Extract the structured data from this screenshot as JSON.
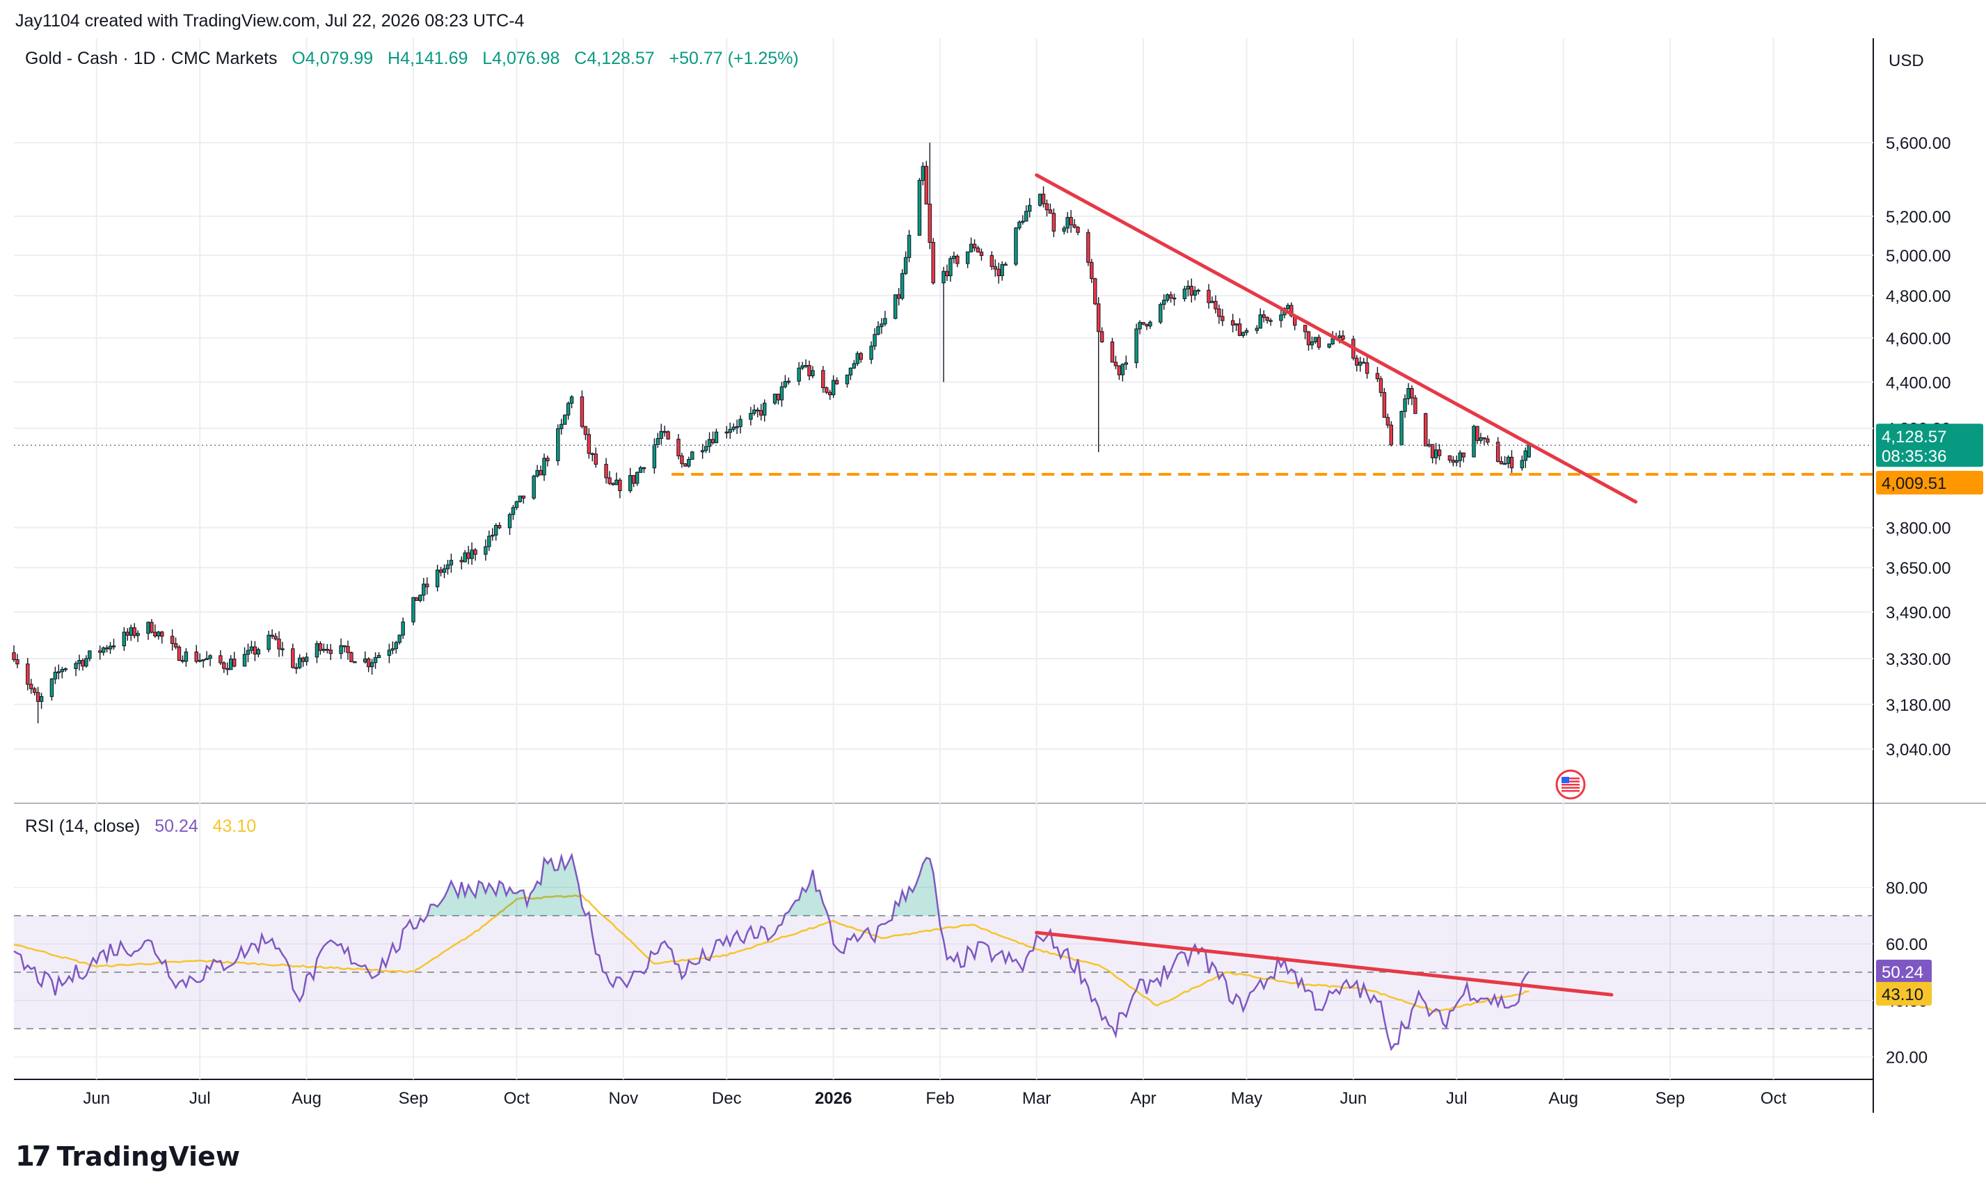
{
  "header": {
    "credit": "Jay1104 created with TradingView.com, Jul 22, 2026 08:23 UTC-4",
    "symbol": "Gold - Cash · 1D · CMC Markets",
    "open": "O4,079.99",
    "high": "H4,141.69",
    "low": "L4,076.98",
    "close": "C4,128.57",
    "change": "+50.77 (+1.25%)"
  },
  "currency": "USD",
  "price_badge": {
    "value": "4,128.57",
    "countdown": "08:35:36",
    "color": "#089981"
  },
  "level_badge": {
    "value": "4,009.51",
    "color": "#ff9800"
  },
  "rsi_legend": {
    "label": "RSI (14, close)",
    "rsi": "50.24",
    "ma": "43.10"
  },
  "rsi_badges": {
    "rsi": "50.24",
    "ma": "43.10",
    "rsi_color": "#7e57c2",
    "ma_color": "#f7c42a"
  },
  "logo": {
    "mark": "17",
    "text": "TradingView"
  },
  "icons": {
    "event_flag": "us-flag-icon"
  },
  "colors": {
    "up": "#089981",
    "down": "#f23645",
    "trendline": "#e63946",
    "support": "#ff9800",
    "rsi": "#7e57c2",
    "rsi_ma": "#f7c42a",
    "rsi_band": "#7e57c2"
  },
  "chart_data": [
    {
      "type": "candlestick",
      "scale": "log",
      "ylim": [
        2950,
        5800
      ],
      "yticks": [
        {
          "value": 5600,
          "label": "5,600.00"
        },
        {
          "value": 5200,
          "label": "5,200.00"
        },
        {
          "value": 5000,
          "label": "5,000.00"
        },
        {
          "value": 4800,
          "label": "4,800.00"
        },
        {
          "value": 4600,
          "label": "4,600.00"
        },
        {
          "value": 4400,
          "label": "4,400.00"
        },
        {
          "value": 4200,
          "label": "4,200.00"
        },
        {
          "value": 3800,
          "label": "3,800.00"
        },
        {
          "value": 3650,
          "label": "3,650.00"
        },
        {
          "value": 3490,
          "label": "3,490.00"
        },
        {
          "value": 3330,
          "label": "3,330.00"
        },
        {
          "value": 3180,
          "label": "3,180.00"
        },
        {
          "value": 3040,
          "label": "3,040.00"
        }
      ],
      "xticks": [
        {
          "date": "2025-06-01",
          "label": "Jun",
          "bold": false
        },
        {
          "date": "2025-07-01",
          "label": "Jul",
          "bold": false
        },
        {
          "date": "2025-08-01",
          "label": "Aug",
          "bold": false
        },
        {
          "date": "2025-09-01",
          "label": "Sep",
          "bold": false
        },
        {
          "date": "2025-10-01",
          "label": "Oct",
          "bold": false
        },
        {
          "date": "2025-11-01",
          "label": "Nov",
          "bold": false
        },
        {
          "date": "2025-12-01",
          "label": "Dec",
          "bold": false
        },
        {
          "date": "2026-01-01",
          "label": "2026",
          "bold": true
        },
        {
          "date": "2026-02-01",
          "label": "Feb",
          "bold": false
        },
        {
          "date": "2026-03-01",
          "label": "Mar",
          "bold": false
        },
        {
          "date": "2026-04-01",
          "label": "Apr",
          "bold": false
        },
        {
          "date": "2026-05-01",
          "label": "May",
          "bold": false
        },
        {
          "date": "2026-06-01",
          "label": "Jun",
          "bold": false
        },
        {
          "date": "2026-07-01",
          "label": "Jul",
          "bold": false
        },
        {
          "date": "2026-08-01",
          "label": "Aug",
          "bold": false
        },
        {
          "date": "2026-09-01",
          "label": "Sep",
          "bold": false
        },
        {
          "date": "2026-10-01",
          "label": "Oct",
          "bold": false
        }
      ],
      "xlim": [
        "2025-05-08",
        "2026-10-30"
      ],
      "closes": [
        [
          "2025-05-08",
          3350
        ],
        [
          "2025-05-15",
          3180
        ],
        [
          "2025-05-22",
          3300
        ],
        [
          "2025-05-29",
          3330
        ],
        [
          "2025-06-05",
          3380
        ],
        [
          "2025-06-12",
          3420
        ],
        [
          "2025-06-17",
          3440
        ],
        [
          "2025-06-24",
          3350
        ],
        [
          "2025-07-01",
          3330
        ],
        [
          "2025-07-08",
          3310
        ],
        [
          "2025-07-15",
          3340
        ],
        [
          "2025-07-22",
          3400
        ],
        [
          "2025-07-29",
          3300
        ],
        [
          "2025-08-05",
          3380
        ],
        [
          "2025-08-12",
          3350
        ],
        [
          "2025-08-19",
          3320
        ],
        [
          "2025-08-26",
          3380
        ],
        [
          "2025-09-02",
          3540
        ],
        [
          "2025-09-09",
          3640
        ],
        [
          "2025-09-16",
          3680
        ],
        [
          "2025-09-23",
          3760
        ],
        [
          "2025-09-30",
          3860
        ],
        [
          "2025-10-07",
          4000
        ],
        [
          "2025-10-14",
          4200
        ],
        [
          "2025-10-17",
          4350
        ],
        [
          "2025-10-22",
          4100
        ],
        [
          "2025-10-28",
          3950
        ],
        [
          "2025-11-04",
          3990
        ],
        [
          "2025-11-12",
          4180
        ],
        [
          "2025-11-18",
          4050
        ],
        [
          "2025-11-25",
          4150
        ],
        [
          "2025-12-02",
          4210
        ],
        [
          "2025-12-09",
          4250
        ],
        [
          "2025-12-16",
          4340
        ],
        [
          "2025-12-23",
          4480
        ],
        [
          "2025-12-30",
          4350
        ],
        [
          "2026-01-06",
          4470
        ],
        [
          "2026-01-13",
          4600
        ],
        [
          "2026-01-20",
          4800
        ],
        [
          "2026-01-27",
          5450
        ],
        [
          "2026-01-30",
          4850
        ],
        [
          "2026-02-04",
          4950
        ],
        [
          "2026-02-11",
          5050
        ],
        [
          "2026-02-18",
          4900
        ],
        [
          "2026-02-25",
          5200
        ],
        [
          "2026-03-03",
          5300
        ],
        [
          "2026-03-06",
          5150
        ],
        [
          "2026-03-11",
          5180
        ],
        [
          "2026-03-16",
          4950
        ],
        [
          "2026-03-20",
          4550
        ],
        [
          "2026-03-25",
          4450
        ],
        [
          "2026-03-31",
          4650
        ],
        [
          "2026-04-08",
          4780
        ],
        [
          "2026-04-15",
          4820
        ],
        [
          "2026-04-22",
          4750
        ],
        [
          "2026-04-29",
          4620
        ],
        [
          "2026-05-06",
          4700
        ],
        [
          "2026-05-13",
          4740
        ],
        [
          "2026-05-20",
          4570
        ],
        [
          "2026-05-27",
          4600
        ],
        [
          "2026-06-03",
          4480
        ],
        [
          "2026-06-08",
          4400
        ],
        [
          "2026-06-12",
          4150
        ],
        [
          "2026-06-17",
          4350
        ],
        [
          "2026-06-22",
          4150
        ],
        [
          "2026-06-26",
          4060
        ],
        [
          "2026-07-01",
          4060
        ],
        [
          "2026-07-06",
          4180
        ],
        [
          "2026-07-10",
          4120
        ],
        [
          "2026-07-15",
          4050
        ],
        [
          "2026-07-20",
          4080
        ],
        [
          "2026-07-22",
          4128.57
        ]
      ],
      "last_ohlc": {
        "open": 4079.99,
        "high": 4141.69,
        "low": 4076.98,
        "close": 4128.57
      },
      "extremes": [
        {
          "date": "2026-01-29",
          "high": 5600
        },
        {
          "date": "2026-02-02",
          "low": 4400
        },
        {
          "date": "2026-03-19",
          "low": 4100
        },
        {
          "date": "2025-05-15",
          "low": 3120
        }
      ],
      "horizontal_level": 4009.51,
      "current_price": 4128.57,
      "trendline": {
        "from": [
          "2026-03-01",
          5420
        ],
        "to": [
          "2026-08-22",
          3900
        ]
      },
      "support_from": "2025-11-15"
    },
    {
      "type": "line",
      "series": [
        {
          "name": "RSI (14, close)",
          "color": "#7e57c2",
          "values": [
            [
              "2025-05-08",
              55
            ],
            [
              "2025-05-20",
              44
            ],
            [
              "2025-06-05",
              58
            ],
            [
              "2025-06-17",
              60
            ],
            [
              "2025-06-25",
              46
            ],
            [
              "2025-07-08",
              53
            ],
            [
              "2025-07-22",
              63
            ],
            [
              "2025-07-30",
              42
            ],
            [
              "2025-08-08",
              60
            ],
            [
              "2025-08-21",
              50
            ],
            [
              "2025-09-02",
              68
            ],
            [
              "2025-09-12",
              80
            ],
            [
              "2025-09-24",
              80
            ],
            [
              "2025-10-06",
              76
            ],
            [
              "2025-10-09",
              87
            ],
            [
              "2025-10-17",
              88
            ],
            [
              "2025-10-27",
              48
            ],
            [
              "2025-11-06",
              48
            ],
            [
              "2025-11-12",
              62
            ],
            [
              "2025-11-18",
              50
            ],
            [
              "2025-12-03",
              62
            ],
            [
              "2025-12-16",
              64
            ],
            [
              "2025-12-26",
              85
            ],
            [
              "2026-01-02",
              58
            ],
            [
              "2026-01-14",
              64
            ],
            [
              "2026-01-29",
              90
            ],
            [
              "2026-02-03",
              52
            ],
            [
              "2026-02-13",
              58
            ],
            [
              "2026-02-25",
              52
            ],
            [
              "2026-03-03",
              64
            ],
            [
              "2026-03-13",
              52
            ],
            [
              "2026-03-23",
              28
            ],
            [
              "2026-03-31",
              44
            ],
            [
              "2026-04-10",
              52
            ],
            [
              "2026-04-17",
              58
            ],
            [
              "2026-04-29",
              38
            ],
            [
              "2026-05-12",
              54
            ],
            [
              "2026-05-22",
              38
            ],
            [
              "2026-06-01",
              46
            ],
            [
              "2026-06-10",
              36
            ],
            [
              "2026-06-12",
              24
            ],
            [
              "2026-06-20",
              40
            ],
            [
              "2026-06-27",
              32
            ],
            [
              "2026-07-04",
              44
            ],
            [
              "2026-07-12",
              40
            ],
            [
              "2026-07-18",
              38
            ],
            [
              "2026-07-22",
              50.24
            ]
          ]
        },
        {
          "name": "MA",
          "color": "#f7c42a",
          "values": [
            [
              "2025-05-08",
              60
            ],
            [
              "2025-06-01",
              52
            ],
            [
              "2025-07-01",
              54
            ],
            [
              "2025-08-01",
              52
            ],
            [
              "2025-09-01",
              50
            ],
            [
              "2025-09-20",
              65
            ],
            [
              "2025-10-01",
              76
            ],
            [
              "2025-10-20",
              77
            ],
            [
              "2025-11-10",
              53
            ],
            [
              "2025-12-01",
              56
            ],
            [
              "2026-01-01",
              68
            ],
            [
              "2026-01-15",
              62
            ],
            [
              "2026-02-10",
              67
            ],
            [
              "2026-03-01",
              58
            ],
            [
              "2026-03-20",
              52
            ],
            [
              "2026-04-05",
              38
            ],
            [
              "2026-04-25",
              50
            ],
            [
              "2026-05-15",
              46
            ],
            [
              "2026-06-05",
              44
            ],
            [
              "2026-06-25",
              36
            ],
            [
              "2026-07-22",
              43.1
            ]
          ]
        }
      ],
      "ylim": [
        15,
        95
      ],
      "yticks": [
        {
          "value": 80,
          "label": "80.00"
        },
        {
          "value": 60,
          "label": "60.00"
        },
        {
          "value": 40,
          "label": "40.00"
        },
        {
          "value": 20,
          "label": "20.00"
        }
      ],
      "band": [
        30,
        70
      ],
      "midline": 50,
      "trendline": {
        "from": [
          "2026-03-01",
          64
        ],
        "to": [
          "2026-08-15",
          42
        ]
      }
    }
  ]
}
